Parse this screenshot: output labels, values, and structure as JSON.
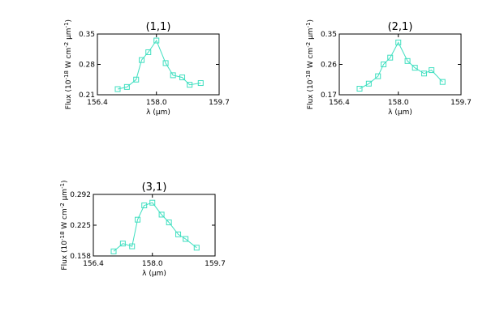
{
  "chart_data": [
    {
      "type": "line",
      "title": "(1,1)",
      "xlabel": "λ (μm)",
      "ylabel": "Flux (10^-18 W cm^-2 μm^-1)",
      "xlim": [
        156.4,
        159.7
      ],
      "ylim": [
        0.21,
        0.35
      ],
      "xticks": [
        "156.4",
        "158.0",
        "159.7"
      ],
      "yticks": [
        "0.21",
        "0.28",
        "0.35"
      ],
      "x": [
        156.95,
        157.2,
        157.45,
        157.6,
        157.78,
        158.0,
        158.25,
        158.45,
        158.7,
        158.9,
        159.2
      ],
      "y": [
        0.223,
        0.228,
        0.245,
        0.29,
        0.308,
        0.335,
        0.283,
        0.255,
        0.25,
        0.233,
        0.237
      ]
    },
    {
      "type": "line",
      "title": "(2,1)",
      "xlabel": "λ (μm)",
      "ylabel": "Flux (10^-18 W cm^-2 μm^-1)",
      "xlim": [
        156.4,
        159.7
      ],
      "ylim": [
        0.17,
        0.35
      ],
      "xticks": [
        "156.4",
        "158.0",
        "159.7"
      ],
      "yticks": [
        "0.17",
        "0.26",
        "0.35"
      ],
      "x": [
        156.95,
        157.2,
        157.45,
        157.6,
        157.78,
        158.0,
        158.25,
        158.45,
        158.7,
        158.9,
        159.2
      ],
      "y": [
        0.188,
        0.203,
        0.225,
        0.26,
        0.28,
        0.325,
        0.27,
        0.25,
        0.233,
        0.243,
        0.208
      ]
    },
    {
      "type": "line",
      "title": "(3,1)",
      "xlabel": "λ (μm)",
      "ylabel": "Flux (10^-18 W cm^-2 μm^-1)",
      "xlim": [
        156.4,
        159.7
      ],
      "ylim": [
        0.158,
        0.292
      ],
      "xticks": [
        "156.4",
        "158.0",
        "159.7"
      ],
      "yticks": [
        "0.158",
        "0.225",
        "0.292"
      ],
      "x": [
        156.95,
        157.2,
        157.45,
        157.6,
        157.78,
        158.0,
        158.25,
        158.45,
        158.7,
        158.9,
        159.2
      ],
      "y": [
        0.168,
        0.185,
        0.179,
        0.237,
        0.268,
        0.274,
        0.248,
        0.231,
        0.205,
        0.195,
        0.176
      ]
    }
  ]
}
